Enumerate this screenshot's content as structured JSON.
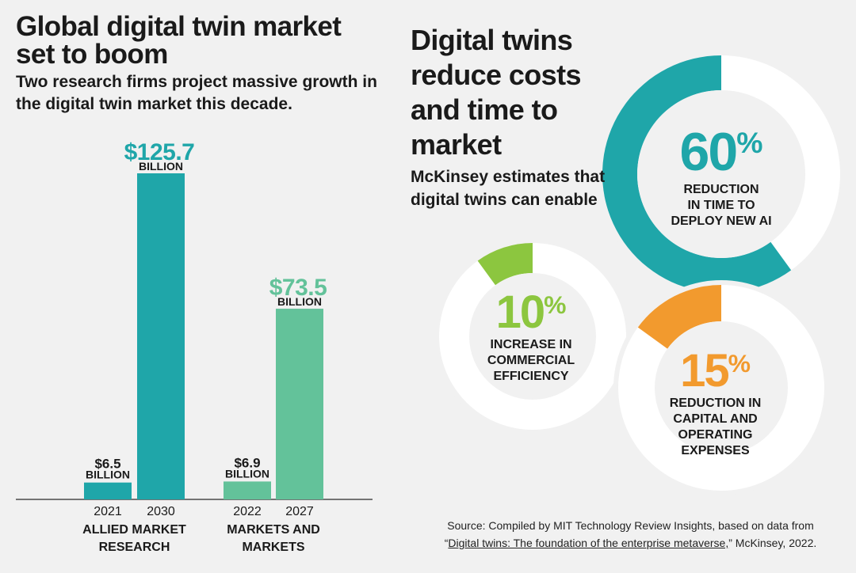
{
  "left": {
    "title": "Global digital twin market set to boom",
    "subtitle": "Two research firms project massive growth in the digital twin market this decade."
  },
  "right": {
    "title": "Digital twins reduce costs and time to market",
    "subtitle": "McKinsey estimates that digital twins can enable"
  },
  "colors": {
    "teal": "#1fa6a9",
    "green": "#63c29a",
    "lime": "#8cc63f",
    "orange": "#f29a2e",
    "donut_bg": "#ffffff",
    "page_bg": "#f1f1f1"
  },
  "chart_data": [
    {
      "type": "bar",
      "groups": [
        {
          "name": "ALLIED MARKET RESEARCH",
          "bars": [
            {
              "year": "2021",
              "value": 6.5,
              "label": "$6.5",
              "unit": "BILLION"
            },
            {
              "year": "2030",
              "value": 125.7,
              "label": "$125.7",
              "unit": "BILLION"
            }
          ]
        },
        {
          "name": "MARKETS AND MARKETS",
          "bars": [
            {
              "year": "2022",
              "value": 6.9,
              "label": "$6.9",
              "unit": "BILLION"
            },
            {
              "year": "2027",
              "value": 73.5,
              "label": "$73.5",
              "unit": "BILLION"
            }
          ]
        }
      ],
      "group_labels": [
        "ALLIED MARKET\nRESEARCH",
        "MARKETS AND\nMARKETS"
      ],
      "ylim": [
        0,
        125.7
      ]
    },
    {
      "type": "pie",
      "slices": [
        {
          "value": 60,
          "pct": "60",
          "label": "REDUCTION IN TIME TO DEPLOY NEW AI",
          "label_lines": [
            "REDUCTION",
            "IN TIME TO",
            "DEPLOY NEW AI"
          ]
        },
        {
          "value": 10,
          "pct": "10",
          "label": "INCREASE IN COMMERCIAL EFFICIENCY",
          "label_lines": [
            "INCREASE IN",
            "COMMERCIAL",
            "EFFICIENCY"
          ]
        },
        {
          "value": 15,
          "pct": "15",
          "label": "REDUCTION IN CAPITAL AND OPERATING EXPENSES",
          "label_lines": [
            "REDUCTION IN",
            "CAPITAL AND",
            "OPERATING",
            "EXPENSES"
          ]
        }
      ],
      "percent_sign": "%"
    }
  ],
  "source": {
    "prefix": "Source: Compiled by MIT Technology Review Insights, based on data from",
    "open_quote": "“",
    "link_text": "Digital twins: The foundation of the enterprise metaverse,",
    "suffix": "” McKinsey, 2022."
  }
}
